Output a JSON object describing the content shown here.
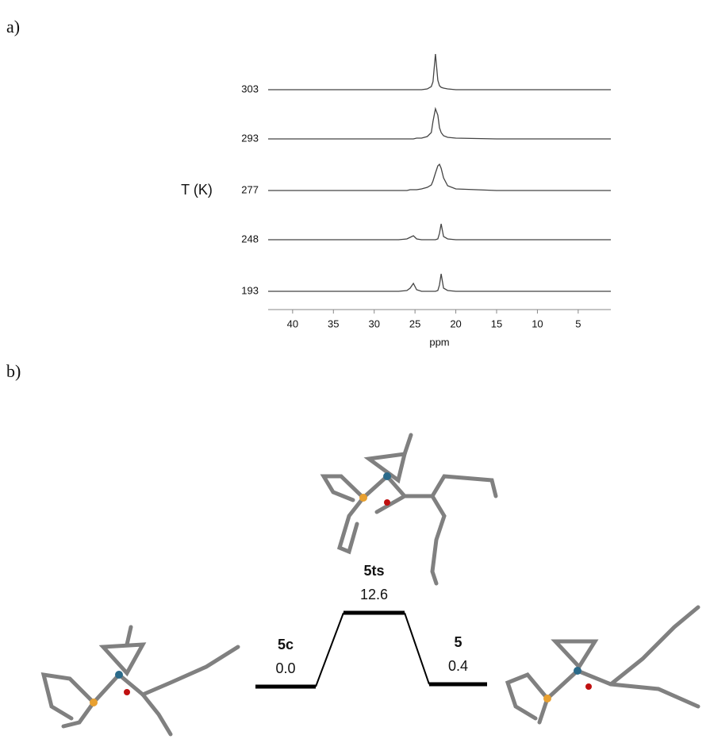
{
  "panels": [
    "a)",
    "b)"
  ],
  "chart_data": [
    {
      "type": "line",
      "xlabel": "ppm",
      "ylabel": "T (K)",
      "xlim": [
        43,
        1
      ],
      "xticks": [
        40,
        35,
        30,
        25,
        20,
        15,
        10,
        5
      ],
      "x": [
        43,
        40,
        35,
        30,
        27,
        26,
        25.6,
        25.2,
        24.8,
        24.2,
        23.5,
        23,
        22.8,
        22.5,
        22.2,
        22,
        21.8,
        21.5,
        21,
        20,
        15,
        10,
        5,
        1
      ],
      "series": [
        {
          "name": "303",
          "color": "#444444",
          "values": [
            0,
            0,
            0,
            0,
            0,
            0,
            0,
            0,
            0,
            0,
            1,
            4,
            10,
            45,
            12,
            5,
            3,
            2,
            1,
            0,
            0,
            0,
            0,
            0
          ]
        },
        {
          "name": "293",
          "color": "#444444",
          "values": [
            0,
            0,
            0,
            0,
            0,
            0,
            0,
            0,
            1,
            1,
            3,
            8,
            22,
            38,
            30,
            14,
            8,
            4,
            2,
            1,
            0,
            0,
            0,
            0
          ]
        },
        {
          "name": "277",
          "color": "#444444",
          "values": [
            0,
            0,
            0,
            0,
            0,
            0,
            1,
            1,
            1,
            2,
            4,
            7,
            12,
            22,
            31,
            33,
            28,
            16,
            6,
            2,
            0,
            0,
            0,
            0
          ]
        },
        {
          "name": "248",
          "color": "#444444",
          "values": [
            0,
            0,
            0,
            0,
            0,
            1,
            3,
            5,
            1,
            0,
            0,
            0,
            0,
            0,
            1,
            8,
            20,
            4,
            1,
            0,
            0,
            0,
            0,
            0
          ]
        },
        {
          "name": "193",
          "color": "#444444",
          "values": [
            0,
            0,
            0,
            0,
            0,
            1,
            4,
            10,
            2,
            0,
            0,
            0,
            0,
            0,
            1,
            8,
            22,
            4,
            1,
            0,
            0,
            0,
            0,
            0
          ]
        }
      ]
    },
    {
      "type": "energy_profile",
      "categories": [
        "5c",
        "5ts",
        "5"
      ],
      "values": [
        0.0,
        12.6,
        0.4
      ],
      "value_labels": [
        "0.0",
        "12.6",
        "0.4"
      ],
      "color": "#000000"
    }
  ]
}
